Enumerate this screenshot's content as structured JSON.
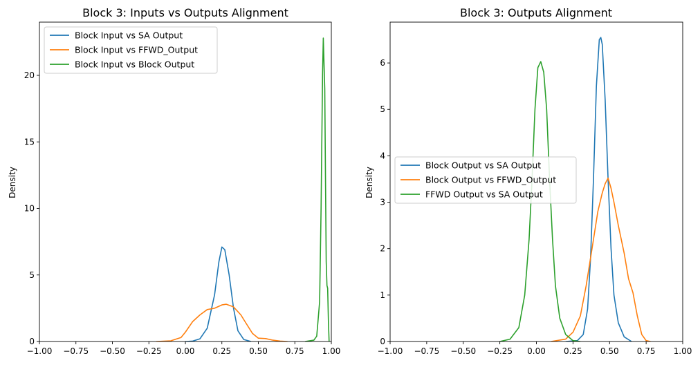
{
  "chart_data": [
    {
      "type": "line",
      "title": "Block 3: Inputs vs Outputs Alignment",
      "xlabel": "",
      "ylabel": "Density",
      "xlim": [
        -1.0,
        1.0
      ],
      "ylim": [
        0,
        24
      ],
      "x_ticks": [
        "−1.00",
        "−0.75",
        "−0.50",
        "−0.25",
        "0.00",
        "0.25",
        "0.50",
        "0.75",
        "1.00"
      ],
      "x_tick_values": [
        -1.0,
        -0.75,
        -0.5,
        -0.25,
        0.0,
        0.25,
        0.5,
        0.75,
        1.0
      ],
      "y_ticks": [
        "0",
        "5",
        "10",
        "15",
        "20"
      ],
      "y_tick_values": [
        0,
        5,
        10,
        15,
        20
      ],
      "grid": false,
      "legend_position": "top-left",
      "series": [
        {
          "name": "Block Input vs SA Output",
          "color": "#1f77b4",
          "points": [
            [
              0.0,
              0.0
            ],
            [
              0.05,
              0.03
            ],
            [
              0.1,
              0.2
            ],
            [
              0.15,
              1.0
            ],
            [
              0.2,
              3.5
            ],
            [
              0.23,
              6.0
            ],
            [
              0.25,
              7.1
            ],
            [
              0.27,
              6.9
            ],
            [
              0.3,
              5.0
            ],
            [
              0.33,
              2.5
            ],
            [
              0.36,
              0.8
            ],
            [
              0.4,
              0.15
            ],
            [
              0.45,
              0.0
            ]
          ]
        },
        {
          "name": "Block Input vs FFWD_Output",
          "color": "#ff7f0e",
          "points": [
            [
              -0.2,
              0.0
            ],
            [
              -0.1,
              0.05
            ],
            [
              -0.03,
              0.3
            ],
            [
              0.0,
              0.7
            ],
            [
              0.05,
              1.5
            ],
            [
              0.1,
              2.0
            ],
            [
              0.15,
              2.4
            ],
            [
              0.2,
              2.5
            ],
            [
              0.25,
              2.75
            ],
            [
              0.28,
              2.8
            ],
            [
              0.33,
              2.6
            ],
            [
              0.38,
              2.0
            ],
            [
              0.42,
              1.3
            ],
            [
              0.46,
              0.6
            ],
            [
              0.5,
              0.25
            ],
            [
              0.55,
              0.22
            ],
            [
              0.6,
              0.1
            ],
            [
              0.65,
              0.03
            ],
            [
              0.7,
              0.0
            ]
          ]
        },
        {
          "name": "Block Input vs Block Output",
          "color": "#2ca02c",
          "points": [
            [
              0.82,
              0.0
            ],
            [
              0.88,
              0.1
            ],
            [
              0.9,
              0.4
            ],
            [
              0.92,
              3.0
            ],
            [
              0.93,
              10.0
            ],
            [
              0.94,
              20.0
            ],
            [
              0.945,
              22.8
            ],
            [
              0.955,
              19.0
            ],
            [
              0.96,
              12.0
            ],
            [
              0.965,
              6.0
            ],
            [
              0.97,
              4.2
            ],
            [
              0.975,
              4.0
            ],
            [
              0.98,
              1.5
            ],
            [
              0.985,
              0.0
            ]
          ]
        }
      ]
    },
    {
      "type": "line",
      "title": "Block 3: Outputs Alignment",
      "xlabel": "",
      "ylabel": "Density",
      "xlim": [
        -1.0,
        1.0
      ],
      "ylim": [
        0,
        6.88
      ],
      "x_ticks": [
        "−1.00",
        "−0.75",
        "−0.50",
        "−0.25",
        "0.00",
        "0.25",
        "0.50",
        "0.75",
        "1.00"
      ],
      "x_tick_values": [
        -1.0,
        -0.75,
        -0.5,
        -0.25,
        0.0,
        0.25,
        0.5,
        0.75,
        1.0
      ],
      "y_ticks": [
        "0",
        "1",
        "2",
        "3",
        "4",
        "5",
        "6"
      ],
      "y_tick_values": [
        0,
        1,
        2,
        3,
        4,
        5,
        6
      ],
      "grid": false,
      "legend_position": "center-left",
      "series": [
        {
          "name": "Block Output vs SA Output",
          "color": "#1f77b4",
          "points": [
            [
              0.2,
              0.0
            ],
            [
              0.28,
              0.02
            ],
            [
              0.32,
              0.15
            ],
            [
              0.35,
              0.7
            ],
            [
              0.37,
              1.8
            ],
            [
              0.39,
              3.5
            ],
            [
              0.41,
              5.5
            ],
            [
              0.43,
              6.5
            ],
            [
              0.44,
              6.55
            ],
            [
              0.45,
              6.4
            ],
            [
              0.47,
              5.2
            ],
            [
              0.49,
              3.5
            ],
            [
              0.51,
              2.0
            ],
            [
              0.53,
              1.0
            ],
            [
              0.56,
              0.4
            ],
            [
              0.6,
              0.1
            ],
            [
              0.65,
              0.0
            ]
          ]
        },
        {
          "name": "Block Output vs FFWD_Output",
          "color": "#ff7f0e",
          "points": [
            [
              0.1,
              0.0
            ],
            [
              0.2,
              0.05
            ],
            [
              0.25,
              0.2
            ],
            [
              0.3,
              0.55
            ],
            [
              0.34,
              1.2
            ],
            [
              0.38,
              2.0
            ],
            [
              0.42,
              2.8
            ],
            [
              0.45,
              3.2
            ],
            [
              0.47,
              3.4
            ],
            [
              0.49,
              3.52
            ],
            [
              0.51,
              3.3
            ],
            [
              0.53,
              3.0
            ],
            [
              0.56,
              2.5
            ],
            [
              0.6,
              1.9
            ],
            [
              0.63,
              1.35
            ],
            [
              0.66,
              1.05
            ],
            [
              0.69,
              0.55
            ],
            [
              0.72,
              0.15
            ],
            [
              0.75,
              0.02
            ],
            [
              0.78,
              0.0
            ]
          ]
        },
        {
          "name": "FFWD Output vs SA Output",
          "color": "#2ca02c",
          "points": [
            [
              -0.25,
              0.0
            ],
            [
              -0.18,
              0.05
            ],
            [
              -0.12,
              0.3
            ],
            [
              -0.08,
              1.0
            ],
            [
              -0.05,
              2.2
            ],
            [
              -0.03,
              3.5
            ],
            [
              -0.01,
              5.0
            ],
            [
              0.01,
              5.9
            ],
            [
              0.03,
              6.03
            ],
            [
              0.05,
              5.8
            ],
            [
              0.07,
              5.0
            ],
            [
              0.09,
              3.5
            ],
            [
              0.11,
              2.2
            ],
            [
              0.13,
              1.2
            ],
            [
              0.16,
              0.5
            ],
            [
              0.2,
              0.15
            ],
            [
              0.25,
              0.02
            ],
            [
              0.3,
              0.0
            ]
          ]
        }
      ]
    }
  ]
}
